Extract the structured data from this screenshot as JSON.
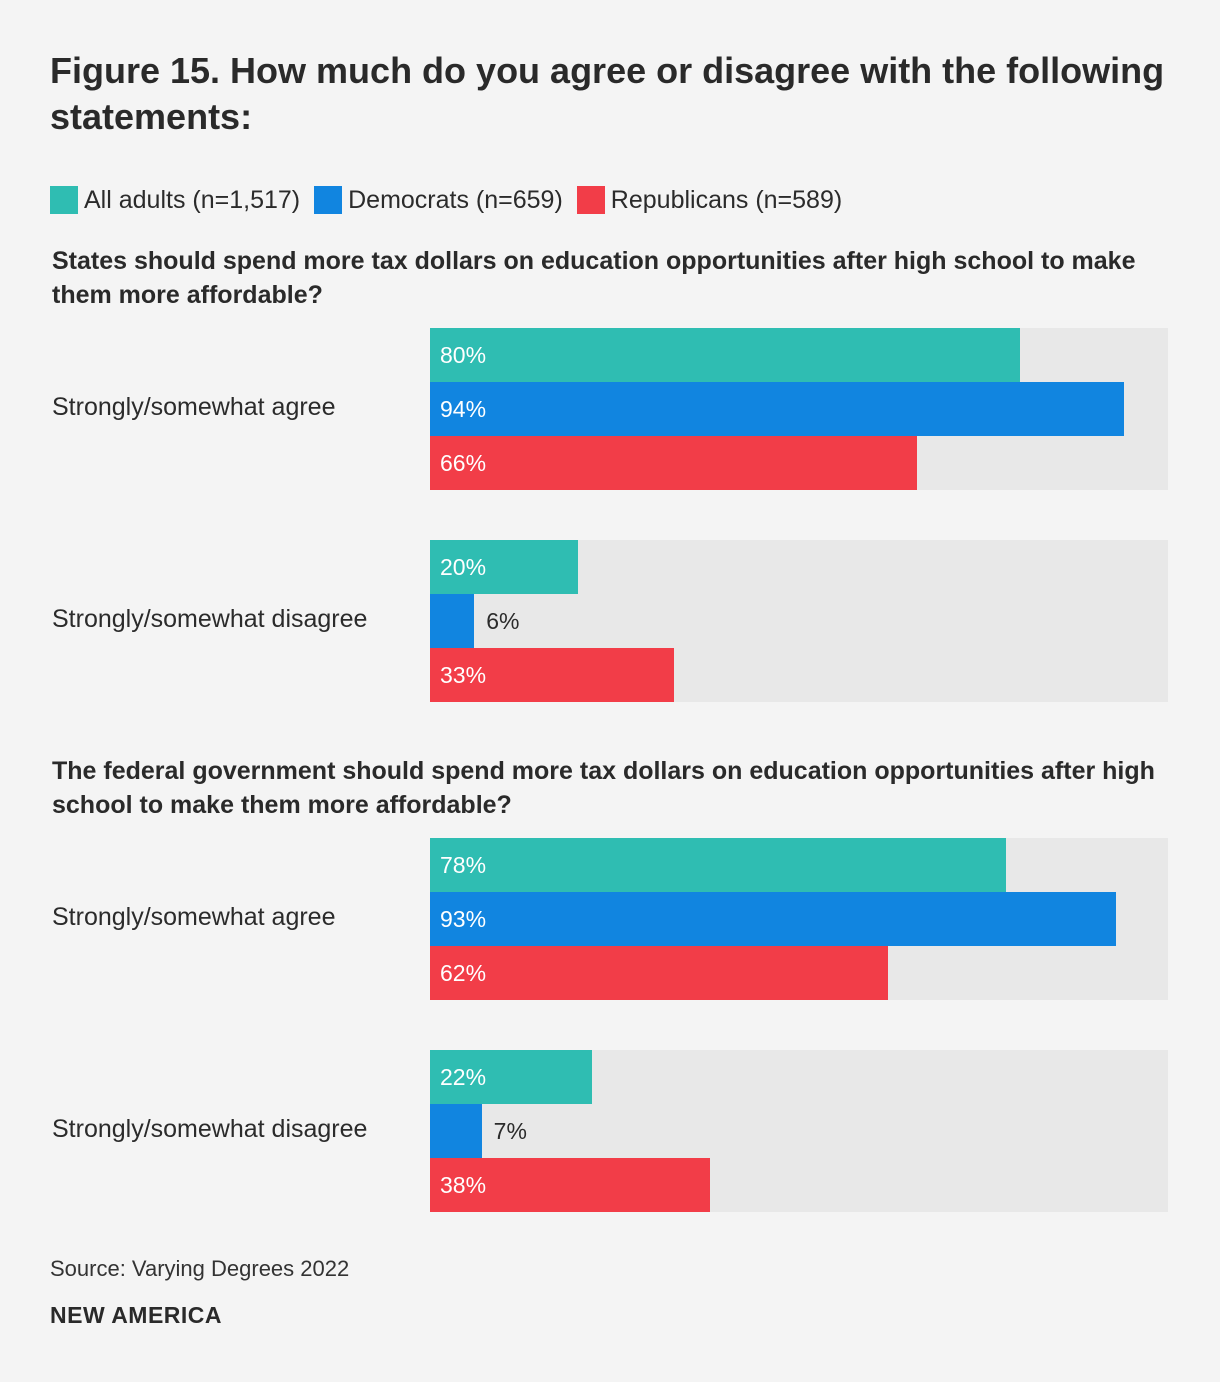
{
  "colors": {
    "all_adults": "#2fbdb2",
    "democrats": "#1185e0",
    "republicans": "#f23d48",
    "track": "#e8e8e8"
  },
  "chart_data": {
    "type": "bar",
    "orientation": "horizontal",
    "title": "Figure 15. How much do you agree or disagree with the following statements:",
    "xlim": [
      0,
      100
    ],
    "legend": [
      {
        "key": "all_adults",
        "label": "All adults (n=1,517)"
      },
      {
        "key": "democrats",
        "label": "Democrats (n=659)"
      },
      {
        "key": "republicans",
        "label": "Republicans (n=589)"
      }
    ],
    "panels": [
      {
        "question": "States should spend more tax dollars on education opportunities after high school to make them more affordable?",
        "groups": [
          {
            "label": "Strongly/somewhat agree",
            "values": [
              80,
              94,
              66
            ],
            "labels": [
              "80%",
              "94%",
              "66%"
            ]
          },
          {
            "label": "Strongly/somewhat disagree",
            "values": [
              20,
              6,
              33
            ],
            "labels": [
              "20%",
              "6%",
              "33%"
            ]
          }
        ]
      },
      {
        "question": "The federal government should spend more tax dollars on education opportunities after high school to make them more affordable?",
        "groups": [
          {
            "label": "Strongly/somewhat agree",
            "values": [
              78,
              93,
              62
            ],
            "labels": [
              "78%",
              "93%",
              "62%"
            ]
          },
          {
            "label": "Strongly/somewhat disagree",
            "values": [
              22,
              7,
              38
            ],
            "labels": [
              "22%",
              "7%",
              "38%"
            ]
          }
        ]
      }
    ]
  },
  "footer": {
    "source": "Source: Varying Degrees 2022",
    "brand": "NEW AMERICA"
  }
}
